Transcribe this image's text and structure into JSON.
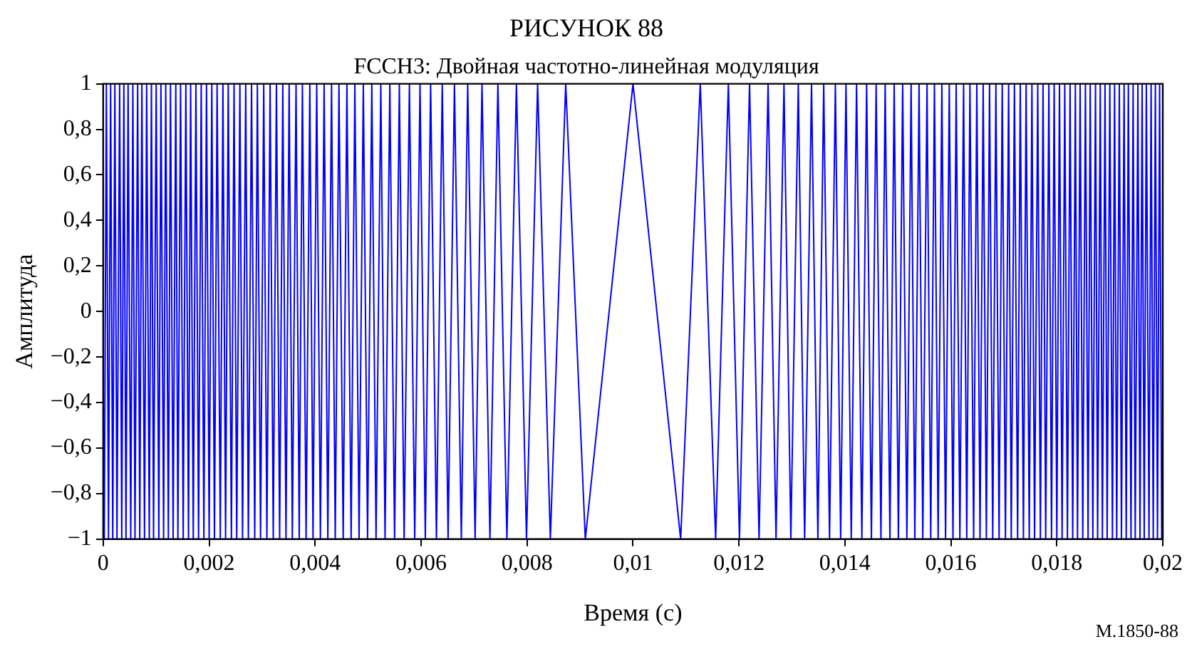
{
  "chart_data": {
    "type": "line",
    "title": "РИСУНОК 88",
    "subtitle": "FCCH3: Двойная частотно-линейная модуляция",
    "xlabel": "Время (с)",
    "ylabel": "Амплитуда",
    "annotations": [
      "M.1850-88"
    ],
    "xlim": [
      0,
      0.02
    ],
    "xticks": [
      0,
      {
        "value": 0.002,
        "label": "0,002"
      },
      {
        "value": 0.004,
        "label": "0,004"
      },
      {
        "value": 0.006,
        "label": "0,006"
      },
      {
        "value": 0.008,
        "label": "0,008"
      },
      {
        "value": 0.01,
        "label": "0,01"
      },
      {
        "value": 0.012,
        "label": "0,012"
      },
      {
        "value": 0.014,
        "label": "0,014"
      },
      {
        "value": 0.016,
        "label": "0,016"
      },
      {
        "value": 0.018,
        "label": "0,018"
      },
      {
        "value": 0.02,
        "label": "0,02"
      }
    ],
    "ylim": [
      -1,
      1
    ],
    "yticks": [
      {
        "value": -1,
        "label": "−1"
      },
      {
        "value": -0.8,
        "label": "−0,8"
      },
      {
        "value": -0.6,
        "label": "−0,6"
      },
      {
        "value": -0.4,
        "label": "−0,4"
      },
      {
        "value": -0.2,
        "label": "−0,2"
      },
      0,
      {
        "value": 0.2,
        "label": "0,2"
      },
      {
        "value": 0.4,
        "label": "0,4"
      },
      {
        "value": 0.6,
        "label": "0,6"
      },
      {
        "value": 0.8,
        "label": "0,8"
      },
      1
    ],
    "grid": false,
    "legend": false,
    "marker": "none",
    "line_style": "solid",
    "series": [
      {
        "color": "#0000ff",
        "x": [
          2e-05,
          6e-05,
          0.0001,
          0.00014,
          0.00018,
          0.00022,
          0.00026,
          0.00031,
          0.00035,
          0.00039,
          0.00043,
          0.00047,
          0.00052,
          0.00056,
          0.0006,
          0.00065,
          0.00069,
          0.00073,
          0.00078,
          0.00082,
          0.00087,
          0.00091,
          0.00095,
          0.001,
          0.00105,
          0.00109,
          0.00114,
          0.00118,
          0.00123,
          0.00127,
          0.00132,
          0.00137,
          0.00141,
          0.00146,
          0.00151,
          0.00156,
          0.00161,
          0.00165,
          0.0017,
          0.00175,
          0.0018,
          0.00185,
          0.0019,
          0.00195,
          0.002,
          0.00205,
          0.0021,
          0.00215,
          0.00221,
          0.00226,
          0.00231,
          0.00236,
          0.00242,
          0.00247,
          0.00252,
          0.00258,
          0.00263,
          0.00269,
          0.00274,
          0.0028,
          0.00286,
          0.00291,
          0.00297,
          0.00303,
          0.00309,
          0.00315,
          0.00321,
          0.00327,
          0.00333,
          0.00339,
          0.00345,
          0.00351,
          0.00357,
          0.00364,
          0.0037,
          0.00376,
          0.00383,
          0.0039,
          0.00396,
          0.00403,
          0.0041,
          0.00417,
          0.00424,
          0.00431,
          0.00438,
          0.00445,
          0.00453,
          0.0046,
          0.00468,
          0.00475,
          0.00483,
          0.00491,
          0.00499,
          0.00507,
          0.00515,
          0.00524,
          0.00532,
          0.00541,
          0.0055,
          0.00559,
          0.00568,
          0.00578,
          0.00588,
          0.00598,
          0.00608,
          0.00618,
          0.00629,
          0.0064,
          0.00651,
          0.00663,
          0.00676,
          0.00688,
          0.00702,
          0.00715,
          0.0073,
          0.00745,
          0.00762,
          0.0078,
          0.00799,
          0.0082,
          0.00844,
          0.00873,
          0.0091,
          0.01,
          0.0109,
          0.01127,
          0.01156,
          0.0118,
          0.01201,
          0.0122,
          0.01238,
          0.01255,
          0.0127,
          0.01285,
          0.01298,
          0.01312,
          0.01324,
          0.01337,
          0.01349,
          0.0136,
          0.01371,
          0.01382,
          0.01392,
          0.01402,
          0.01412,
          0.01422,
          0.01432,
          0.01441,
          0.0145,
          0.01459,
          0.01468,
          0.01476,
          0.01485,
          0.01493,
          0.01501,
          0.01509,
          0.01517,
          0.01525,
          0.01532,
          0.0154,
          0.01547,
          0.01555,
          0.01562,
          0.01569,
          0.01576,
          0.01583,
          0.0159,
          0.01597,
          0.01604,
          0.0161,
          0.01617,
          0.01624,
          0.0163,
          0.01636,
          0.01643,
          0.01649,
          0.01655,
          0.01661,
          0.01667,
          0.01673,
          0.01679,
          0.01685,
          0.01691,
          0.01697,
          0.01703,
          0.01709,
          0.01714,
          0.0172,
          0.01726,
          0.01731,
          0.01737,
          0.01742,
          0.01748,
          0.01753,
          0.01758,
          0.01764,
          0.01769,
          0.01774,
          0.01779,
          0.01785,
          0.0179,
          0.01795,
          0.018,
          0.01805,
          0.0181,
          0.01815,
          0.0182,
          0.01825,
          0.0183,
          0.01835,
          0.01839,
          0.01844,
          0.01849,
          0.01854,
          0.01859,
          0.01863,
          0.01868,
          0.01873,
          0.01877,
          0.01882,
          0.01886,
          0.01891,
          0.01895,
          0.019,
          0.01905,
          0.01909,
          0.01913,
          0.01918,
          0.01922,
          0.01927,
          0.01931,
          0.01935,
          0.0194,
          0.01944,
          0.01948,
          0.01953,
          0.01957,
          0.01961,
          0.01965,
          0.01969,
          0.01974,
          0.01978,
          0.01982,
          0.01986,
          0.0199,
          0.01994,
          0.01998
        ],
        "values": [
          -1,
          1,
          -1,
          1,
          -1,
          1,
          -1,
          1,
          -1,
          1,
          -1,
          1,
          -1,
          1,
          -1,
          1,
          -1,
          1,
          -1,
          1,
          -1,
          1,
          -1,
          1,
          -1,
          1,
          -1,
          1,
          -1,
          1,
          -1,
          1,
          -1,
          1,
          -1,
          1,
          -1,
          1,
          -1,
          1,
          -1,
          1,
          -1,
          1,
          -1,
          1,
          -1,
          1,
          -1,
          1,
          -1,
          1,
          -1,
          1,
          -1,
          1,
          -1,
          1,
          -1,
          1,
          -1,
          1,
          -1,
          1,
          -1,
          1,
          -1,
          1,
          -1,
          1,
          -1,
          1,
          -1,
          1,
          -1,
          1,
          -1,
          1,
          -1,
          1,
          -1,
          1,
          -1,
          1,
          -1,
          1,
          -1,
          1,
          -1,
          1,
          -1,
          1,
          -1,
          1,
          -1,
          1,
          -1,
          1,
          -1,
          1,
          -1,
          1,
          -1,
          1,
          -1,
          1,
          -1,
          1,
          -1,
          1,
          -1,
          1,
          -1,
          1,
          -1,
          1,
          -1,
          1,
          -1,
          1,
          -1,
          1,
          -1,
          1,
          -1,
          1,
          -1,
          1,
          -1,
          1,
          -1,
          1,
          -1,
          1,
          -1,
          1,
          -1,
          1,
          -1,
          1,
          -1,
          1,
          -1,
          1,
          -1,
          1,
          -1,
          1,
          -1,
          1,
          -1,
          1,
          -1,
          1,
          -1,
          1,
          -1,
          1,
          -1,
          1,
          -1,
          1,
          -1,
          1,
          -1,
          1,
          -1,
          1,
          -1,
          1,
          -1,
          1,
          -1,
          1,
          -1,
          1,
          -1,
          1,
          -1,
          1,
          -1,
          1,
          -1,
          1,
          -1,
          1,
          -1,
          1,
          -1,
          1,
          -1,
          1,
          -1,
          1,
          -1,
          1,
          -1,
          1,
          -1,
          1,
          -1,
          1,
          -1,
          1,
          -1,
          1,
          -1,
          1,
          -1,
          1,
          -1,
          1,
          -1,
          1,
          -1,
          1,
          -1,
          1,
          -1,
          1,
          -1,
          1,
          -1,
          1,
          -1,
          1,
          -1,
          1,
          -1,
          1,
          -1,
          1,
          -1,
          1,
          -1,
          1,
          -1,
          1,
          -1,
          1,
          -1,
          1,
          -1,
          1,
          -1,
          1,
          -1
        ]
      }
    ]
  }
}
